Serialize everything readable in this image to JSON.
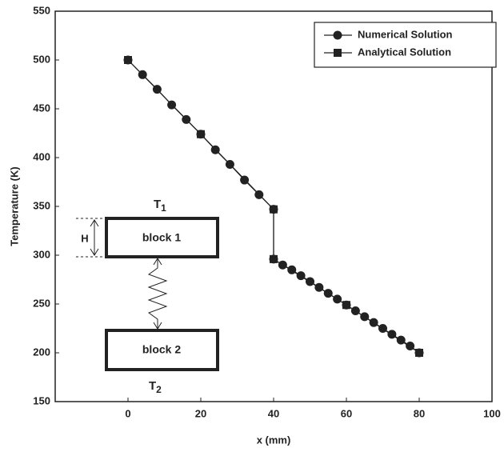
{
  "chart_data": {
    "type": "line",
    "xlabel": "x (mm)",
    "ylabel": "Temperature (K)",
    "xlim": [
      -20,
      100
    ],
    "xticks": [
      0,
      20,
      40,
      60,
      80,
      100
    ],
    "ylim": [
      150,
      550
    ],
    "yticks": [
      150,
      200,
      250,
      300,
      350,
      400,
      450,
      500,
      550
    ],
    "legend": "upper right",
    "series": [
      {
        "name": "Numerical Solution",
        "color": "#222222",
        "marker": "circle",
        "x": [
          0,
          4,
          8,
          12,
          16,
          20,
          24,
          28,
          32,
          36,
          40,
          40,
          42.5,
          45,
          47.5,
          50,
          52.5,
          55,
          57.5,
          60,
          62.5,
          65,
          67.5,
          70,
          72.5,
          75,
          77.5,
          80
        ],
        "values": [
          500,
          485,
          470,
          454,
          439,
          424,
          408,
          393,
          377,
          362,
          347,
          296,
          290,
          285,
          279,
          273,
          267,
          261,
          255,
          249,
          243,
          237,
          231,
          225,
          219,
          213,
          207,
          200
        ]
      },
      {
        "name": "Analytical Solution",
        "color": "#222222",
        "marker": "square",
        "x": [
          0,
          20,
          40,
          40,
          60,
          80
        ],
        "values": [
          500,
          424,
          347,
          296,
          249,
          200
        ]
      }
    ]
  },
  "diagram": {
    "top_label": {
      "symbol": "T",
      "sub": "1"
    },
    "bottom_label": {
      "symbol": "T",
      "sub": "2"
    },
    "height_label": "H",
    "block1": "block 1",
    "block2": "block 2"
  }
}
